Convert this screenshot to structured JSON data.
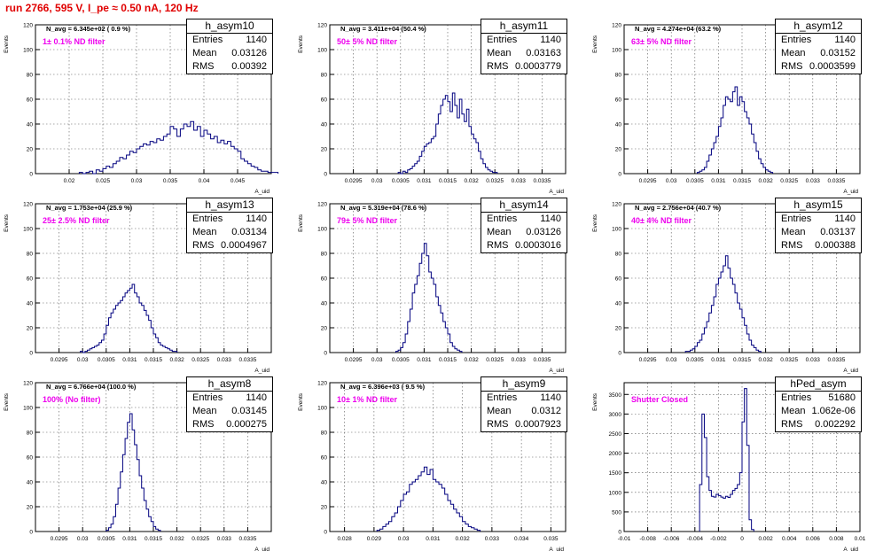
{
  "run_title": "run 2766,   595 V, I_pe ≈ 0.50 nA, 120 Hz",
  "panels": [
    {
      "hist_name": "h_asym10",
      "navg": "N_avg = 6.345e+02 ( 0.9 %)",
      "filter": "1± 0.1% ND filter",
      "entries": "1140",
      "mean": "0.03126",
      "rms": "0.00392",
      "xlabel": "A_uid",
      "ylabel": "Events"
    },
    {
      "hist_name": "h_asym11",
      "navg": "N_avg = 3.411e+04 (50.4 %)",
      "filter": "50± 5% ND filter",
      "entries": "1140",
      "mean": "0.03163",
      "rms": "0.0003779",
      "xlabel": "A_uid",
      "ylabel": "Events"
    },
    {
      "hist_name": "h_asym12",
      "navg": "N_avg = 4.274e+04 (63.2 %)",
      "filter": "63± 5% ND filter",
      "entries": "1140",
      "mean": "0.03152",
      "rms": "0.0003599",
      "xlabel": "A_uid",
      "ylabel": "Events"
    },
    {
      "hist_name": "h_asym13",
      "navg": "N_avg = 1.753e+04 (25.9 %)",
      "filter": "25± 2.5% ND filter",
      "entries": "1140",
      "mean": "0.03134",
      "rms": "0.0004967",
      "xlabel": "A_uid",
      "ylabel": "Events"
    },
    {
      "hist_name": "h_asym14",
      "navg": "N_avg = 5.319e+04 (78.6 %)",
      "filter": "79± 5% ND filter",
      "entries": "1140",
      "mean": "0.03126",
      "rms": "0.0003016",
      "xlabel": "A_uid",
      "ylabel": "Events"
    },
    {
      "hist_name": "h_asym15",
      "navg": "N_avg = 2.756e+04 (40.7 %)",
      "filter": "40± 4% ND filter",
      "entries": "1140",
      "mean": "0.03137",
      "rms": "0.000388",
      "xlabel": "A_uid",
      "ylabel": "Events"
    },
    {
      "hist_name": "h_asym8",
      "navg": "N_avg = 6.766e+04 (100.0 %)",
      "filter": "100% (No filter)",
      "entries": "1140",
      "mean": "0.03145",
      "rms": "0.000275",
      "xlabel": "A_uid",
      "ylabel": "Events"
    },
    {
      "hist_name": "h_asym9",
      "navg": "N_avg = 6.396e+03 ( 9.5 %)",
      "filter": "10± 1% ND filter",
      "entries": "1140",
      "mean": "0.0312",
      "rms": "0.0007923",
      "xlabel": "A_uid",
      "ylabel": "Events"
    },
    {
      "hist_name": "hPed_asym",
      "navg": "",
      "filter": "Shutter Closed",
      "entries": "51680",
      "mean": "1.062e-06",
      "rms": "0.002292",
      "xlabel": "A_uid",
      "ylabel": "Events"
    }
  ],
  "colors": {
    "hist_line": "#00007f",
    "filter_text": "#ee00ee",
    "title_text": "#e00000",
    "grid": "#555555"
  },
  "chart_data": [
    {
      "type": "bar",
      "title": "h_asym10",
      "xlabel": "A_uid",
      "ylabel": "Events",
      "grid": true,
      "xlim": [
        0.015,
        0.05
      ],
      "ylim": [
        0,
        120
      ],
      "xticks": [
        0.02,
        0.025,
        0.03,
        0.035,
        0.04,
        0.045
      ],
      "xtick_labels": [
        "0.02",
        "0.025",
        "0.03",
        "0.035",
        "0.04",
        "0.045"
      ],
      "yticks": [
        0,
        20,
        40,
        60,
        80,
        100,
        120
      ],
      "ytick_labels": [
        "0",
        "20",
        "40",
        "60",
        "80",
        "100",
        "120"
      ],
      "x_start": 0.0215,
      "bin_width": 0.0005,
      "values": [
        1,
        0,
        1,
        2,
        0,
        3,
        2,
        4,
        6,
        5,
        8,
        10,
        13,
        12,
        15,
        18,
        17,
        20,
        22,
        24,
        23,
        26,
        25,
        28,
        27,
        30,
        32,
        38,
        36,
        30,
        36,
        40,
        38,
        42,
        35,
        38,
        30,
        35,
        32,
        28,
        30,
        25,
        27,
        24,
        26,
        22,
        20,
        18,
        12,
        10,
        8,
        6,
        5,
        3,
        2,
        2,
        1,
        1,
        1
      ]
    },
    {
      "type": "bar",
      "title": "h_asym11",
      "xlabel": "A_uid",
      "ylabel": "Events",
      "grid": true,
      "xlim": [
        0.029,
        0.034
      ],
      "ylim": [
        0,
        120
      ],
      "xticks": [
        0.0295,
        0.03,
        0.0305,
        0.031,
        0.0315,
        0.032,
        0.0325,
        0.033,
        0.0335
      ],
      "xtick_labels": [
        "0.0295",
        "0.03",
        "0.0305",
        "0.031",
        "0.0315",
        "0.032",
        "0.0325",
        "0.033",
        "0.0335"
      ],
      "yticks": [
        0,
        20,
        40,
        60,
        80,
        100,
        120
      ],
      "ytick_labels": [
        "0",
        "20",
        "40",
        "60",
        "80",
        "100",
        "120"
      ],
      "x_start": 0.03045,
      "bin_width": 5e-05,
      "values": [
        1,
        0,
        2,
        1,
        3,
        4,
        6,
        8,
        10,
        14,
        18,
        22,
        24,
        25,
        28,
        30,
        40,
        48,
        55,
        60,
        63,
        58,
        50,
        65,
        55,
        45,
        60,
        48,
        42,
        52,
        38,
        32,
        28,
        25,
        18,
        12,
        8,
        5,
        3,
        2,
        1,
        1
      ]
    },
    {
      "type": "bar",
      "title": "h_asym12",
      "xlabel": "A_uid",
      "ylabel": "Events",
      "grid": true,
      "xlim": [
        0.029,
        0.034
      ],
      "ylim": [
        0,
        120
      ],
      "xticks": [
        0.0295,
        0.03,
        0.0305,
        0.031,
        0.0315,
        0.032,
        0.0325,
        0.033,
        0.0335
      ],
      "xtick_labels": [
        "0.0295",
        "0.03",
        "0.0305",
        "0.031",
        "0.0315",
        "0.032",
        "0.0325",
        "0.033",
        "0.0335"
      ],
      "yticks": [
        0,
        20,
        40,
        60,
        80,
        100,
        120
      ],
      "ytick_labels": [
        "0",
        "20",
        "40",
        "60",
        "80",
        "100",
        "120"
      ],
      "x_start": 0.03055,
      "bin_width": 5e-05,
      "values": [
        1,
        2,
        3,
        5,
        10,
        15,
        20,
        25,
        30,
        38,
        45,
        55,
        62,
        60,
        58,
        66,
        70,
        55,
        62,
        58,
        50,
        45,
        40,
        32,
        25,
        18,
        12,
        8,
        5,
        3,
        2,
        1
      ]
    },
    {
      "type": "bar",
      "title": "h_asym13",
      "xlabel": "A_uid",
      "ylabel": "Events",
      "grid": true,
      "xlim": [
        0.029,
        0.034
      ],
      "ylim": [
        0,
        120
      ],
      "xticks": [
        0.0295,
        0.03,
        0.0305,
        0.031,
        0.0315,
        0.032,
        0.0325,
        0.033,
        0.0335
      ],
      "xtick_labels": [
        "0.0295",
        "0.03",
        "0.0305",
        "0.031",
        "0.0315",
        "0.032",
        "0.0325",
        "0.033",
        "0.0335"
      ],
      "yticks": [
        0,
        20,
        40,
        60,
        80,
        100,
        120
      ],
      "ytick_labels": [
        "0",
        "20",
        "40",
        "60",
        "80",
        "100",
        "120"
      ],
      "x_start": 0.02995,
      "bin_width": 5e-05,
      "values": [
        1,
        0,
        1,
        2,
        3,
        4,
        5,
        6,
        8,
        10,
        15,
        22,
        28,
        32,
        35,
        38,
        40,
        42,
        45,
        48,
        50,
        52,
        55,
        48,
        45,
        40,
        38,
        34,
        30,
        26,
        20,
        15,
        12,
        8,
        6,
        5,
        4,
        3,
        2,
        1,
        1
      ]
    },
    {
      "type": "bar",
      "title": "h_asym14",
      "xlabel": "A_uid",
      "ylabel": "Events",
      "grid": true,
      "xlim": [
        0.029,
        0.034
      ],
      "ylim": [
        0,
        120
      ],
      "xticks": [
        0.0295,
        0.03,
        0.0305,
        0.031,
        0.0315,
        0.032,
        0.0325,
        0.033,
        0.0335
      ],
      "xtick_labels": [
        "0.0295",
        "0.03",
        "0.0305",
        "0.031",
        "0.0315",
        "0.032",
        "0.0325",
        "0.033",
        "0.0335"
      ],
      "yticks": [
        0,
        20,
        40,
        60,
        80,
        100,
        120
      ],
      "ytick_labels": [
        "0",
        "20",
        "40",
        "60",
        "80",
        "100",
        "120"
      ],
      "x_start": 0.0304,
      "bin_width": 5e-05,
      "values": [
        1,
        2,
        4,
        8,
        15,
        25,
        35,
        48,
        55,
        62,
        72,
        80,
        88,
        78,
        65,
        60,
        55,
        45,
        38,
        32,
        25,
        20,
        15,
        8,
        5,
        3,
        2,
        1
      ]
    },
    {
      "type": "bar",
      "title": "h_asym15",
      "xlabel": "A_uid",
      "ylabel": "Events",
      "grid": true,
      "xlim": [
        0.029,
        0.034
      ],
      "ylim": [
        0,
        120
      ],
      "xticks": [
        0.0295,
        0.03,
        0.0305,
        0.031,
        0.0315,
        0.032,
        0.0325,
        0.033,
        0.0335
      ],
      "xtick_labels": [
        "0.0295",
        "0.03",
        "0.0305",
        "0.031",
        "0.0315",
        "0.032",
        "0.0325",
        "0.033",
        "0.0335"
      ],
      "yticks": [
        0,
        20,
        40,
        60,
        80,
        100,
        120
      ],
      "ytick_labels": [
        "0",
        "20",
        "40",
        "60",
        "80",
        "100",
        "120"
      ],
      "x_start": 0.0303,
      "bin_width": 5e-05,
      "values": [
        1,
        1,
        2,
        3,
        5,
        8,
        10,
        15,
        20,
        25,
        32,
        38,
        45,
        55,
        60,
        65,
        70,
        78,
        68,
        60,
        55,
        48,
        40,
        35,
        28,
        22,
        15,
        10,
        6,
        4,
        2,
        1
      ]
    },
    {
      "type": "bar",
      "title": "h_asym8",
      "xlabel": "A_uid",
      "ylabel": "Events",
      "grid": true,
      "xlim": [
        0.029,
        0.034
      ],
      "ylim": [
        0,
        120
      ],
      "xticks": [
        0.0295,
        0.03,
        0.0305,
        0.031,
        0.0315,
        0.032,
        0.0325,
        0.033,
        0.0335
      ],
      "xtick_labels": [
        "0.0295",
        "0.03",
        "0.0305",
        "0.031",
        "0.0315",
        "0.032",
        "0.0325",
        "0.033",
        "0.0335"
      ],
      "yticks": [
        0,
        20,
        40,
        60,
        80,
        100,
        120
      ],
      "ytick_labels": [
        "0",
        "20",
        "40",
        "60",
        "80",
        "100",
        "120"
      ],
      "x_start": 0.0305,
      "bin_width": 5e-05,
      "values": [
        1,
        3,
        6,
        12,
        22,
        35,
        48,
        62,
        75,
        88,
        95,
        82,
        70,
        58,
        45,
        35,
        25,
        18,
        12,
        8,
        4,
        2,
        1
      ]
    },
    {
      "type": "bar",
      "title": "h_asym9",
      "xlabel": "A_uid",
      "ylabel": "Events",
      "grid": true,
      "xlim": [
        0.0275,
        0.0355
      ],
      "ylim": [
        0,
        120
      ],
      "xticks": [
        0.028,
        0.029,
        0.03,
        0.031,
        0.032,
        0.033,
        0.034,
        0.035
      ],
      "xtick_labels": [
        "0.028",
        "0.029",
        "0.03",
        "0.031",
        "0.032",
        "0.033",
        "0.034",
        "0.035"
      ],
      "yticks": [
        0,
        20,
        40,
        60,
        80,
        100,
        120
      ],
      "ytick_labels": [
        "0",
        "20",
        "40",
        "60",
        "80",
        "100",
        "120"
      ],
      "x_start": 0.0291,
      "bin_width": 0.0001,
      "values": [
        1,
        2,
        4,
        6,
        8,
        12,
        15,
        20,
        25,
        30,
        32,
        38,
        40,
        42,
        45,
        48,
        52,
        46,
        50,
        42,
        40,
        38,
        35,
        30,
        25,
        22,
        18,
        15,
        12,
        8,
        6,
        4,
        3,
        2,
        1
      ]
    },
    {
      "type": "bar",
      "title": "hPed_asym",
      "xlabel": "A_uid",
      "ylabel": "Events",
      "grid": true,
      "xlim": [
        -0.01,
        0.01
      ],
      "ylim": [
        0,
        3800
      ],
      "xticks": [
        -0.01,
        -0.008,
        -0.006,
        -0.004,
        -0.002,
        0,
        0.002,
        0.004,
        0.006,
        0.008,
        0.01
      ],
      "xtick_labels": [
        "-0.01",
        "-0.008",
        "-0.006",
        "-0.004",
        "-0.002",
        "0",
        "0.002",
        "0.004",
        "0.006",
        "0.008",
        "0.01"
      ],
      "yticks": [
        0,
        500,
        1000,
        1500,
        2000,
        2500,
        3000,
        3500
      ],
      "ytick_labels": [
        "0",
        "500",
        "1000",
        "1500",
        "2000",
        "2500",
        "3000",
        "3500"
      ],
      "x_start": -0.0036,
      "bin_width": 0.0002,
      "values": [
        1200,
        3000,
        2400,
        1400,
        1050,
        900,
        880,
        950,
        920,
        880,
        850,
        900,
        870,
        950,
        1050,
        1100,
        1200,
        1500,
        2800,
        3650,
        2200,
        300,
        50
      ]
    }
  ]
}
